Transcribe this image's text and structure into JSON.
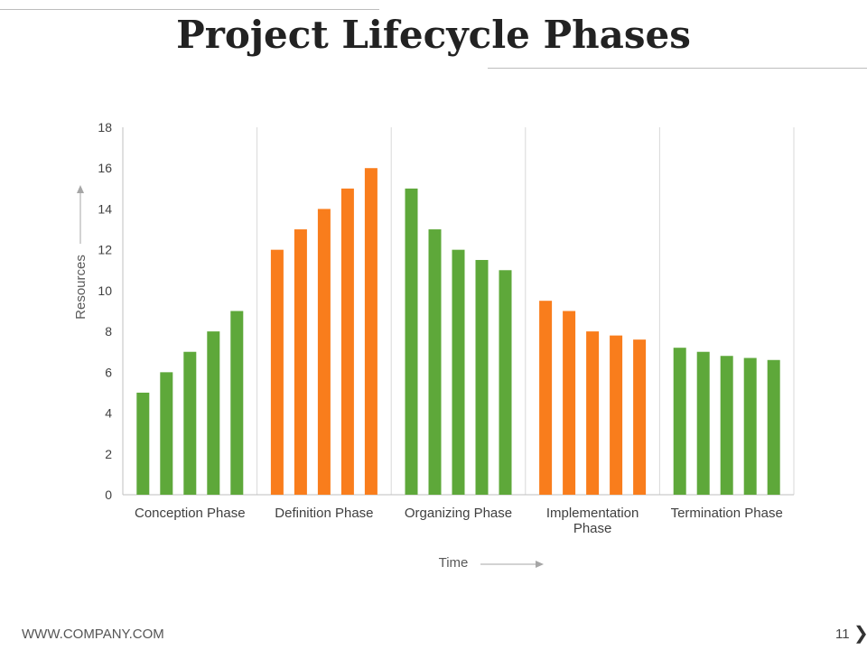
{
  "slide": {
    "title": "Project Lifecycle Phases",
    "footer_url": "WWW.COMPANY.COM",
    "page_number": "11",
    "nav_icon": "chevron-right-icon"
  },
  "colors": {
    "green": "#5ea83a",
    "orange": "#f97d1c",
    "grid": "#d9d9d9",
    "axis": "#bfbfbf",
    "text": "#404040"
  },
  "chart_data": {
    "type": "bar",
    "categories": [
      "Conception Phase",
      "Definition Phase",
      "Organizing Phase",
      "Implementation Phase",
      "Termination Phase"
    ],
    "category_colors": [
      "#5ea83a",
      "#f97d1c",
      "#5ea83a",
      "#f97d1c",
      "#5ea83a"
    ],
    "groups": [
      [
        5,
        6,
        7,
        8,
        9
      ],
      [
        12,
        13,
        14,
        15,
        16
      ],
      [
        15,
        13,
        12,
        11.5,
        11
      ],
      [
        9.5,
        9,
        8,
        7.8,
        7.6
      ],
      [
        7.2,
        7,
        6.8,
        6.7,
        6.6
      ]
    ],
    "xlabel": "Time",
    "ylabel": "Resources",
    "ylim": [
      0,
      18
    ],
    "yticks": [
      "0",
      "2",
      "4",
      "6",
      "8",
      "10",
      "12",
      "14",
      "16",
      "18"
    ],
    "grid": "vertical separators only",
    "legend": "none"
  }
}
